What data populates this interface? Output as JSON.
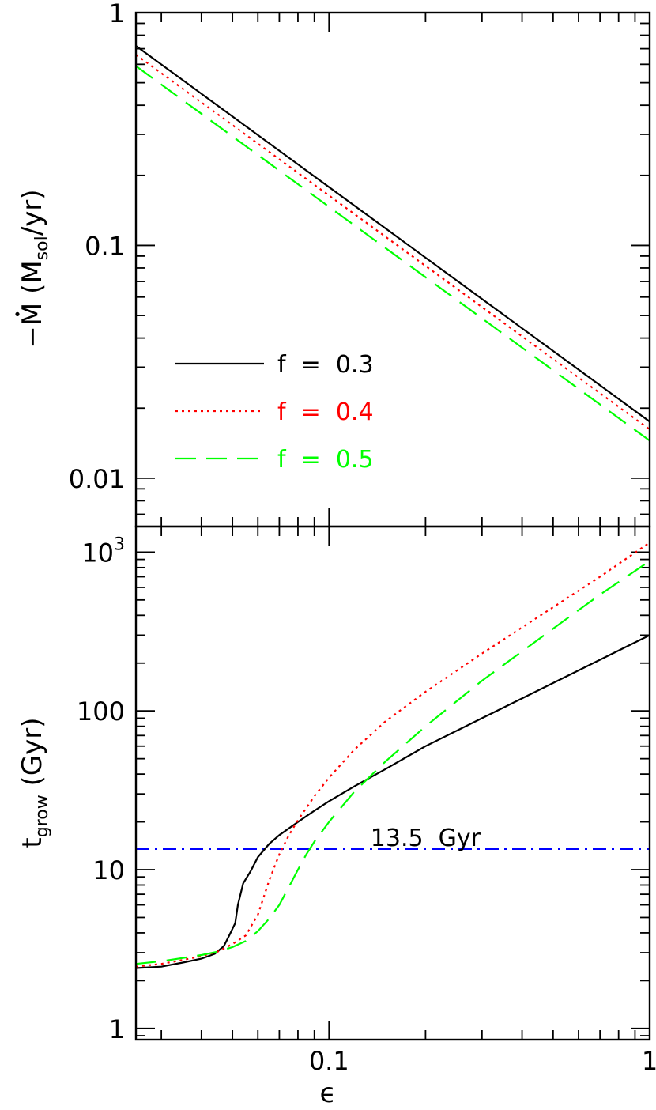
{
  "chart_data": [
    {
      "type": "line",
      "panel": "top",
      "x_scale": "log",
      "y_scale": "log",
      "xlim": [
        0.025,
        1.0
      ],
      "ylim": [
        0.0062,
        1.0
      ],
      "grid": false,
      "legend_placement": "bottom-left",
      "ylabel_parts": {
        "prefix": "−",
        "symbol": "M",
        "open": " (M",
        "sub": "sol",
        "close": "/yr)"
      },
      "y_ticks": [
        {
          "value": 0.01,
          "label": "0.01"
        },
        {
          "value": 0.1,
          "label": "0.1"
        },
        {
          "value": 1,
          "label": "1"
        }
      ],
      "series": [
        {
          "name": "f  =  0.3",
          "color": "#000000",
          "style": "solid",
          "x": [
            0.025,
            1.0
          ],
          "y": [
            0.72,
            0.0175
          ]
        },
        {
          "name": "f  =  0.4",
          "color": "#ff0000",
          "style": "dotted",
          "x": [
            0.025,
            1.0
          ],
          "y": [
            0.66,
            0.0162
          ]
        },
        {
          "name": "f  =  0.5",
          "color": "#00ff00",
          "style": "dashed",
          "x": [
            0.025,
            1.0
          ],
          "y": [
            0.59,
            0.0145
          ]
        }
      ]
    },
    {
      "type": "line",
      "panel": "bottom",
      "x_scale": "log",
      "y_scale": "log",
      "xlim": [
        0.025,
        1.0
      ],
      "ylim": [
        0.85,
        1450
      ],
      "grid": false,
      "xlabel": "ϵ",
      "ylabel_parts": {
        "main": "t",
        "sub": "grow",
        "rest": " (Gyr)"
      },
      "x_ticks": [
        {
          "value": 0.1,
          "label": "0.1"
        },
        {
          "value": 1,
          "label": "1"
        }
      ],
      "y_ticks": [
        {
          "value": 1,
          "label": "1",
          "sup": ""
        },
        {
          "value": 10,
          "label": "10",
          "sup": ""
        },
        {
          "value": 100,
          "label": "100",
          "sup": ""
        },
        {
          "value": 1000,
          "label": "10",
          "sup": "3"
        }
      ],
      "annotation": {
        "text": "13.5  Gyr",
        "x": 0.2,
        "y": 15.8
      },
      "reference_line": {
        "value": 13.5,
        "color": "#0000ff",
        "style": "dashdot"
      },
      "series": [
        {
          "color": "#000000",
          "style": "solid",
          "x": [
            0.025,
            0.03,
            0.035,
            0.04,
            0.044,
            0.047,
            0.049,
            0.051,
            0.052,
            0.054,
            0.057,
            0.06,
            0.065,
            0.07,
            0.08,
            0.09,
            0.1,
            0.12,
            0.15,
            0.2,
            0.3,
            0.5,
            0.7,
            1.0
          ],
          "y": [
            2.4,
            2.45,
            2.6,
            2.75,
            2.95,
            3.3,
            3.9,
            4.6,
            6.0,
            8.2,
            9.8,
            12.0,
            14.5,
            16.5,
            20.0,
            23.5,
            27.0,
            33.5,
            43.0,
            60.0,
            90.0,
            150.0,
            210.0,
            300.0
          ]
        },
        {
          "color": "#ff0000",
          "style": "dotted",
          "x": [
            0.025,
            0.03,
            0.035,
            0.04,
            0.045,
            0.05,
            0.055,
            0.06,
            0.065,
            0.07,
            0.075,
            0.08,
            0.09,
            0.1,
            0.12,
            0.15,
            0.2,
            0.3,
            0.5,
            0.7,
            1.0
          ],
          "y": [
            2.45,
            2.55,
            2.7,
            2.85,
            3.05,
            3.4,
            3.85,
            5.2,
            8.5,
            12.5,
            16.5,
            20.5,
            29.0,
            38.0,
            57.0,
            86.0,
            132.0,
            230.0,
            450.0,
            700.0,
            1150.0
          ]
        },
        {
          "color": "#00ff00",
          "style": "dashed",
          "x": [
            0.025,
            0.03,
            0.035,
            0.04,
            0.045,
            0.05,
            0.055,
            0.06,
            0.065,
            0.07,
            0.075,
            0.08,
            0.085,
            0.09,
            0.1,
            0.12,
            0.15,
            0.2,
            0.3,
            0.5,
            0.7,
            1.0
          ],
          "y": [
            2.55,
            2.65,
            2.78,
            2.9,
            3.05,
            3.25,
            3.55,
            4.1,
            4.9,
            6.0,
            7.8,
            10.0,
            12.5,
            15.0,
            20.0,
            31.0,
            48.0,
            80.0,
            155.0,
            330.0,
            540.0,
            880.0
          ]
        }
      ]
    }
  ]
}
